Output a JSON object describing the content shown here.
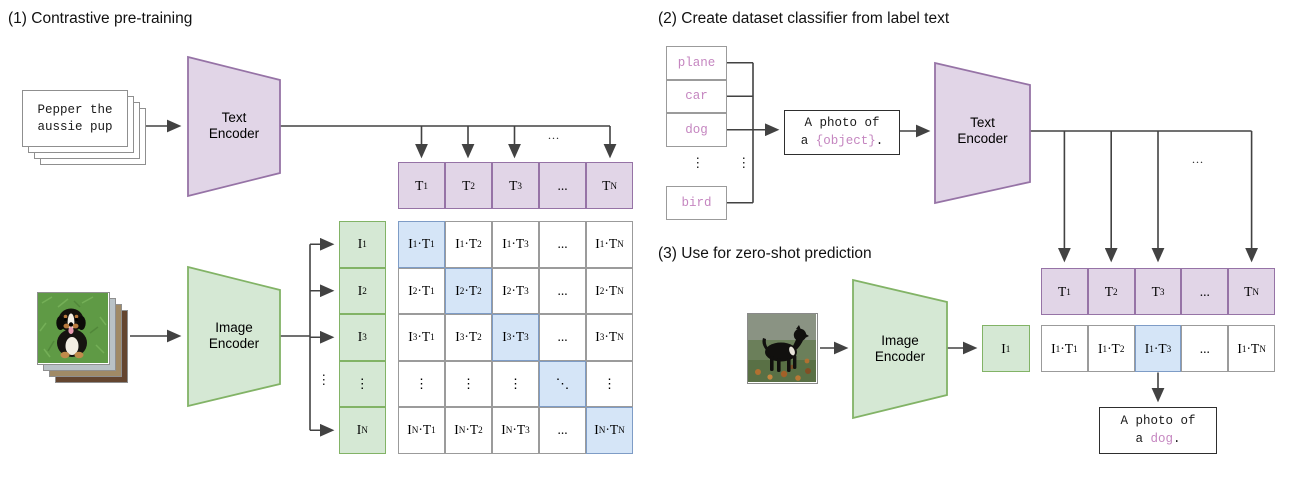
{
  "colors": {
    "purple_fill": "#E1D5E7",
    "purple_stroke": "#9673A6",
    "green_fill": "#D5E8D4",
    "green_stroke": "#82B366",
    "blue_fill": "#D5E5F7",
    "blue_stroke": "#7E9CC6",
    "arrow": "#424242",
    "box_border": "#9B9B9B",
    "accent_text": "#C586C0"
  },
  "panel1": {
    "title": "(1) Contrastive pre-training",
    "text_stack": {
      "line1": "Pepper the",
      "line2": "aussie pup"
    },
    "text_encoder": {
      "line1": "Text",
      "line2": "Encoder"
    },
    "image_encoder": {
      "line1": "Image",
      "line2": "Encoder"
    },
    "dots_horizontal": "...",
    "dots_vertical": "⋮",
    "t_row": [
      "T_1",
      "T_2",
      "T_3",
      "...",
      "T_N"
    ],
    "i_col": [
      "I_1",
      "I_2",
      "I_3",
      "⋮",
      "I_N"
    ],
    "matrix": [
      [
        "I_1·T_1",
        "I_1·T_2",
        "I_1·T_3",
        "...",
        "I_1·T_N"
      ],
      [
        "I_2·T_1",
        "I_2·T_2",
        "I_2·T_3",
        "...",
        "I_2·T_N"
      ],
      [
        "I_3·T_1",
        "I_3·T_2",
        "I_3·T_3",
        "...",
        "I_3·T_N"
      ],
      [
        "⋮",
        "⋮",
        "⋮",
        "⋱",
        "⋮"
      ],
      [
        "I_N·T_1",
        "I_N·T_2",
        "I_N·T_3",
        "...",
        "I_N·T_N"
      ]
    ]
  },
  "panel2": {
    "title": "(2) Create dataset classifier from label text",
    "labels": [
      "plane",
      "car",
      "dog",
      "bird"
    ],
    "label_ellipsis": "⋮",
    "connector_ellipsis": "⋮",
    "prompt": {
      "line1": "A photo of",
      "line2_pre": "a ",
      "line2_object": "{object}",
      "line2_post": "."
    },
    "text_encoder": {
      "line1": "Text",
      "line2": "Encoder"
    },
    "dots_horizontal": "...",
    "t_row": [
      "T_1",
      "T_2",
      "T_3",
      "...",
      "T_N"
    ]
  },
  "panel3": {
    "title": "(3) Use for zero-shot prediction",
    "image_encoder": {
      "line1": "Image",
      "line2": "Encoder"
    },
    "i_cell": "I_1",
    "score_row": [
      "I_1·T_1",
      "I_1·T_2",
      "I_1·T_3",
      "...",
      "I_1·T_N"
    ],
    "highlight_index": 2,
    "prompt": {
      "line1": "A photo of",
      "line2_pre": "a ",
      "line2_object": "dog",
      "line2_post": "."
    }
  }
}
